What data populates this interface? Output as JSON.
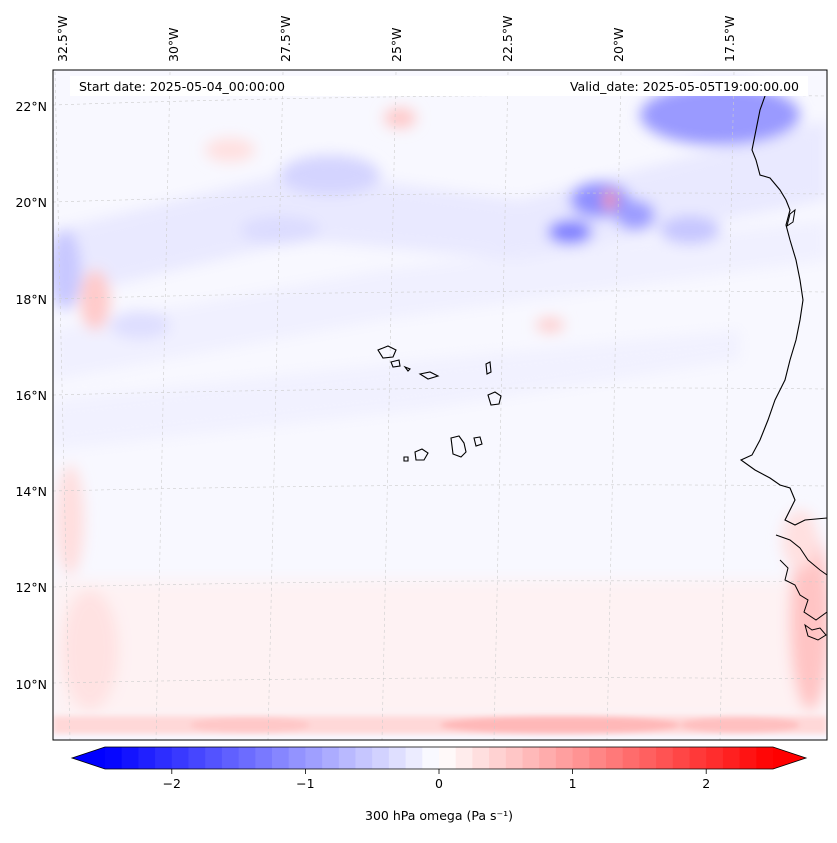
{
  "header": {
    "start_date": "Start date: 2025-05-04_00:00:00",
    "valid_date": "Valid_date: 2025-05-05T19:00:00.00"
  },
  "map": {
    "lon_labels": [
      "32.5°W",
      "30°W",
      "27.5°W",
      "25°W",
      "22.5°W",
      "20°W",
      "17.5°W"
    ],
    "lat_labels": [
      "22°N",
      "20°N",
      "18°N",
      "16°N",
      "14°N",
      "12°N",
      "10°N"
    ],
    "variable": "300 hPa omega",
    "units": "Pa s⁻¹"
  },
  "colorbar": {
    "tick_labels": [
      "−2",
      "−1",
      "0",
      "1",
      "2"
    ],
    "tick_values": [
      -2,
      -1,
      0,
      1,
      2
    ],
    "range": [
      -2.5,
      2.5
    ],
    "label": "300 hPa omega (Pa s⁻¹)",
    "colors": {
      "low": "#0000ff",
      "mid": "#ffffff",
      "high": "#ff0000"
    },
    "levels": 40
  }
}
